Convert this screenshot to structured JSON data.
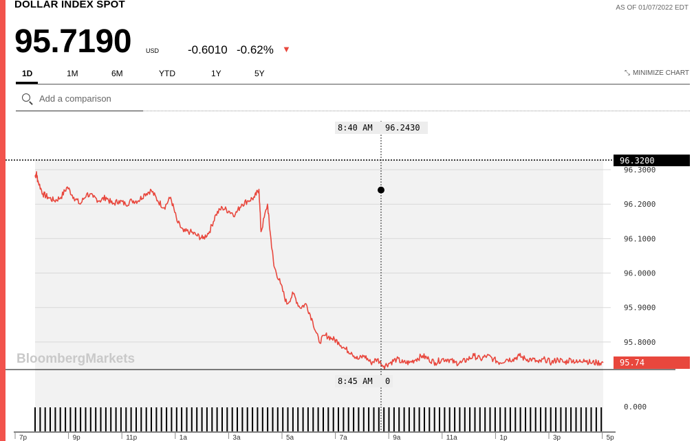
{
  "header": {
    "title": "DOLLAR INDEX SPOT",
    "as_of": "AS OF 01/07/2022 EDT",
    "price": "95.7190",
    "currency": "USD",
    "change": "-0.6010",
    "change_pct": "-0.62%"
  },
  "tabs": [
    {
      "label": "1D",
      "active": true
    },
    {
      "label": "1M",
      "active": false
    },
    {
      "label": "6M",
      "active": false
    },
    {
      "label": "YTD",
      "active": false
    },
    {
      "label": "1Y",
      "active": false
    },
    {
      "label": "5Y",
      "active": false
    }
  ],
  "minimize_label": "MINIMIZE CHART",
  "search": {
    "placeholder": "Add a comparison"
  },
  "colors": {
    "accent": "#f2534c",
    "line": "#e8473d",
    "fill": "#f2f2f2",
    "label_dark": "#000000"
  },
  "watermark": "BloombergMarkets",
  "chart_data": {
    "type": "line",
    "x_ticks": [
      "7p",
      "9p",
      "11p",
      "1a",
      "3a",
      "5a",
      "7a",
      "9a",
      "11a",
      "1p",
      "3p",
      "5p"
    ],
    "y_ticks": [
      "96.3000",
      "96.2000",
      "96.1000",
      "96.0000",
      "95.9000",
      "95.8000"
    ],
    "ylim": [
      95.72,
      96.33
    ],
    "series": [
      {
        "x": [
          0.0,
          0.05,
          0.1,
          0.3,
          0.5,
          0.75,
          1.0,
          1.25,
          1.5,
          1.75,
          2.0,
          2.25,
          2.5,
          2.75,
          3.0,
          3.25,
          3.5,
          3.75,
          4.0,
          4.25,
          4.5,
          4.75,
          5.0,
          5.25,
          5.5,
          5.75,
          6.0,
          6.25,
          6.5,
          6.75,
          7.0,
          7.25,
          7.5,
          7.75,
          8.0,
          8.25,
          8.5,
          8.67,
          8.75,
          9.0,
          9.1,
          9.25,
          9.5,
          9.75,
          10.0,
          10.25,
          10.5,
          10.75,
          11.0,
          11.25,
          11.5,
          11.75,
          12.0,
          12.25,
          12.5,
          12.75,
          13.0,
          13.25,
          13.5,
          13.75,
          14.0,
          14.25,
          14.5,
          14.75,
          15.0,
          15.25,
          15.5,
          15.75,
          16.0,
          16.25,
          16.5,
          16.75,
          17.0,
          17.25,
          17.5,
          17.75,
          18.0,
          18.25,
          18.5,
          18.75,
          19.0,
          19.25,
          19.5,
          19.75,
          20.0,
          20.25,
          20.5,
          20.75,
          21.0,
          21.25,
          21.5,
          21.75,
          22.0
        ],
        "y": [
          96.28,
          96.29,
          96.27,
          96.23,
          96.22,
          96.21,
          96.22,
          96.25,
          96.22,
          96.2,
          96.23,
          96.22,
          96.21,
          96.22,
          96.2,
          96.21,
          96.2,
          96.21,
          96.21,
          96.23,
          96.24,
          96.21,
          96.19,
          96.22,
          96.15,
          96.12,
          96.12,
          96.11,
          96.1,
          96.12,
          96.17,
          96.19,
          96.18,
          96.17,
          96.2,
          96.21,
          96.22,
          96.243,
          96.12,
          96.2,
          96.12,
          96.02,
          95.97,
          95.91,
          95.94,
          95.9,
          95.91,
          95.86,
          95.8,
          95.82,
          95.81,
          95.8,
          95.78,
          95.77,
          95.75,
          95.76,
          95.74,
          95.75,
          95.73,
          95.74,
          95.75,
          95.74,
          95.74,
          95.75,
          95.76,
          95.75,
          95.74,
          95.75,
          95.75,
          95.74,
          95.74,
          95.75,
          95.76,
          95.75,
          95.76,
          95.75,
          95.74,
          95.75,
          95.75,
          95.76,
          95.75,
          95.75,
          95.74,
          95.75,
          95.74,
          95.75,
          95.74,
          95.75,
          95.74,
          95.75,
          95.74,
          95.74,
          95.74
        ]
      }
    ],
    "last_label": "95.74",
    "previous_close": "96.3200",
    "crosshair_price": {
      "time": "8:40 AM",
      "value": "96.2430"
    },
    "crosshair_volume": {
      "time": "8:45 AM",
      "value": "0"
    },
    "volume_axis": [
      "0.000"
    ],
    "grid": true
  }
}
